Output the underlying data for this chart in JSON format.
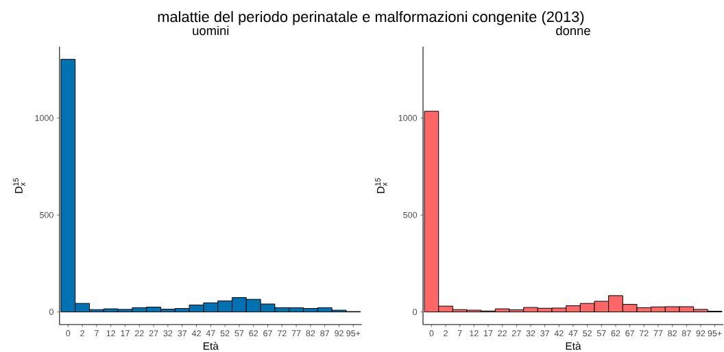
{
  "chart_data": [
    {
      "type": "bar",
      "title": "malattie del periodo perinatale e malformazioni congenite (2013)",
      "subtitle": "uomini",
      "xlabel": "Età",
      "ylabel": "\\mathrm{D}_{\\mathrm{x}}^{\\mathrm{15}}",
      "categories": [
        "0",
        "2",
        "7",
        "12",
        "17",
        "22",
        "27",
        "32",
        "37",
        "42",
        "47",
        "52",
        "57",
        "62",
        "67",
        "72",
        "77",
        "82",
        "87",
        "92",
        "95+"
      ],
      "values": [
        1303,
        44,
        12,
        16,
        13,
        22,
        25,
        14,
        18,
        36,
        47,
        57,
        74,
        65,
        41,
        22,
        22,
        18,
        22,
        9,
        2
      ],
      "color": "#0072B2",
      "ylim": [
        -65,
        1368
      ],
      "yticks": [
        0,
        500,
        1000
      ]
    },
    {
      "type": "bar",
      "subtitle": "donne",
      "xlabel": "Età",
      "ylabel": "\\mathrm{D}_{\\mathrm{x}}^{\\mathrm{15}}",
      "categories": [
        "0",
        "2",
        "7",
        "12",
        "17",
        "22",
        "27",
        "32",
        "37",
        "42",
        "47",
        "52",
        "57",
        "62",
        "67",
        "72",
        "77",
        "82",
        "87",
        "92",
        "95+"
      ],
      "values": [
        1035,
        30,
        12,
        9,
        5,
        16,
        11,
        23,
        19,
        20,
        32,
        44,
        55,
        84,
        39,
        22,
        26,
        27,
        27,
        13,
        4
      ],
      "color": "#FF6666",
      "ylim": [
        -65,
        1368
      ],
      "yticks": [
        0,
        500,
        1000
      ]
    }
  ]
}
